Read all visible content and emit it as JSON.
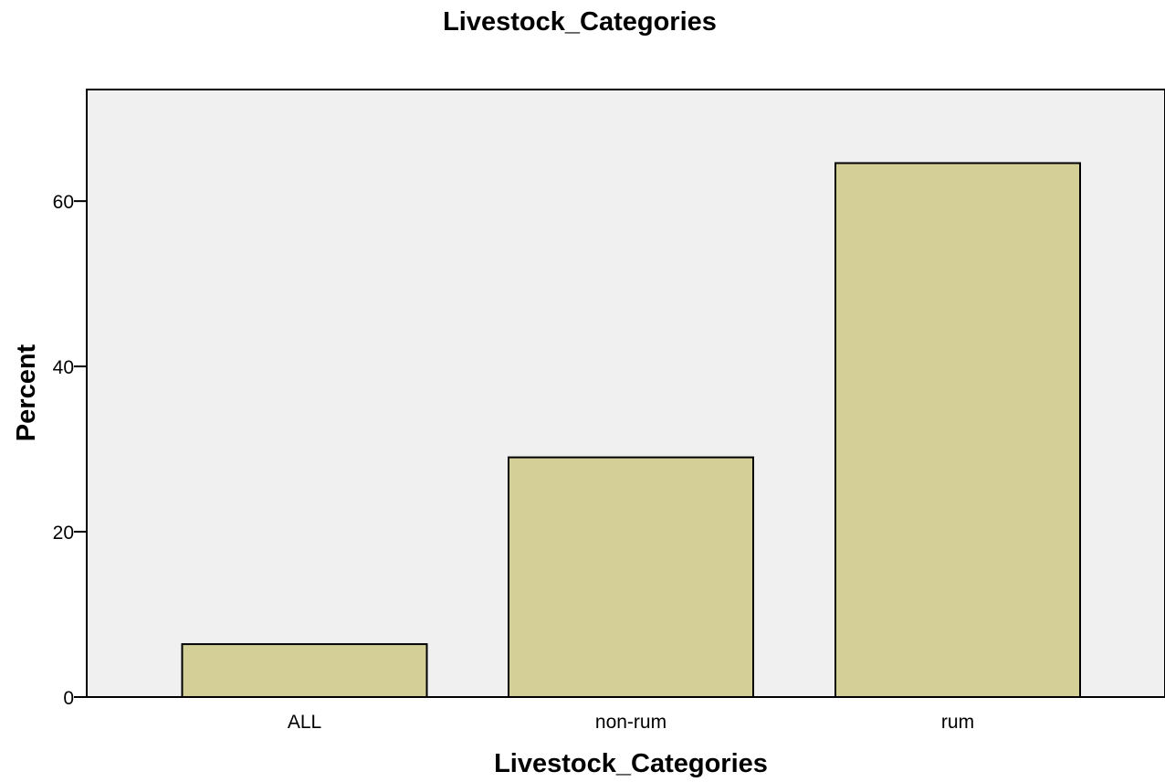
{
  "chart_data": {
    "type": "bar",
    "title": "Livestock_Categories",
    "xlabel": "Livestock_Categories",
    "ylabel": "Percent",
    "categories": [
      "ALL",
      "non-rum",
      "rum"
    ],
    "values": [
      6.4,
      29.0,
      64.6
    ],
    "ylim": [
      0,
      73.5
    ],
    "yticks": [
      0,
      20,
      40,
      60
    ],
    "grid": false,
    "colors": {
      "bar_fill": "#d4cf97",
      "bar_stroke": "#000000",
      "plot_background": "#f0f0f0"
    }
  }
}
